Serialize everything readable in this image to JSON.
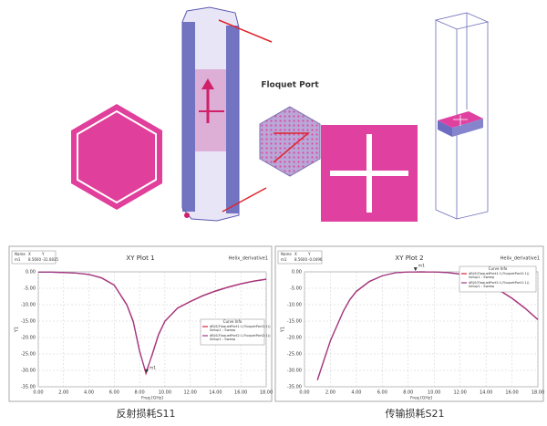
{
  "figure": {
    "port_label": "Floquet Port",
    "captions": [
      "反射损耗S11",
      "传输损耗S21"
    ]
  },
  "chart_data": [
    {
      "type": "line",
      "title": "XY Plot 1",
      "corner_label": "Helix_derivative1",
      "xlabel": "Freq [GHz]",
      "ylabel": "Y1",
      "x": [
        0,
        1,
        2,
        3,
        4,
        5,
        6,
        7,
        7.5,
        8,
        8.5,
        9,
        9.5,
        10,
        11,
        12,
        13,
        14,
        15,
        16,
        17,
        18
      ],
      "series": [
        {
          "name": "dB(S(FloquetPort1:1,FloquetPort1:1))",
          "note": "Setup1 : Sweep",
          "color": "#d6243b",
          "values": [
            -0.1,
            -0.1,
            -0.2,
            -0.4,
            -0.8,
            -1.8,
            -4,
            -10,
            -15,
            -24,
            -31,
            -25,
            -19,
            -15,
            -11,
            -9,
            -7.2,
            -5.8,
            -4.6,
            -3.6,
            -2.8,
            -2.2
          ]
        },
        {
          "name": "dB(S(FloquetPort2:1,FloquetPort2:1))",
          "note": "Setup1 : Sweep",
          "color": "#9b3a8a",
          "values": [
            -0.1,
            -0.1,
            -0.2,
            -0.4,
            -0.8,
            -1.9,
            -4.1,
            -10.2,
            -15.3,
            -24.3,
            -30.6,
            -25.3,
            -19.2,
            -15.1,
            -11.1,
            -9.1,
            -7.3,
            -5.9,
            -4.7,
            -3.7,
            -2.9,
            -2.3
          ]
        }
      ],
      "marker": {
        "label": "m1",
        "x": 8.56,
        "y": -31.0835
      },
      "marker_table": {
        "header": [
          "Name",
          "X",
          "Y"
        ],
        "rows": [
          [
            "m1",
            "8.5600",
            "-31.0835"
          ]
        ]
      },
      "legend_title": "Curve Info",
      "legend": "right",
      "xlim": [
        0,
        18
      ],
      "ylim": [
        -35,
        0
      ],
      "grid": true,
      "xticks": [
        {
          "value": 0,
          "label": "0.00"
        },
        {
          "value": 2,
          "label": "2.00"
        },
        {
          "value": 4,
          "label": "4.00"
        },
        {
          "value": 6,
          "label": "6.00"
        },
        {
          "value": 8,
          "label": "8.00"
        },
        {
          "value": 10,
          "label": "10.00"
        },
        {
          "value": 12,
          "label": "12.00"
        },
        {
          "value": 14,
          "label": "14.00"
        },
        {
          "value": 16,
          "label": "16.00"
        },
        {
          "value": 18,
          "label": "18.00"
        }
      ],
      "yticks": [
        {
          "value": 0,
          "label": "0.00"
        },
        {
          "value": -5,
          "label": "-5.00"
        },
        {
          "value": -10,
          "label": "-10.00"
        },
        {
          "value": -15,
          "label": "-15.00"
        },
        {
          "value": -20,
          "label": "-20.00"
        },
        {
          "value": -25,
          "label": "-25.00"
        },
        {
          "value": -30,
          "label": "-30.00"
        },
        {
          "value": -35,
          "label": "-35.00"
        }
      ]
    },
    {
      "type": "line",
      "title": "XY Plot 2",
      "corner_label": "Helix_derivative1",
      "xlabel": "Freq [GHz]",
      "ylabel": "Y1",
      "x": [
        1,
        1.5,
        2,
        2.5,
        3,
        3.5,
        4,
        5,
        6,
        7,
        8,
        9,
        10,
        11,
        12,
        13,
        14,
        15,
        16,
        17,
        18
      ],
      "series": [
        {
          "name": "dB(S(FloquetPort1:1,FloquetPort2:1))",
          "note": "Setup1 : Sweep",
          "color": "#d6243b",
          "values": [
            -33,
            -27,
            -21,
            -16.5,
            -12,
            -8.5,
            -6,
            -3,
            -1.2,
            -0.3,
            -0.05,
            0,
            -0.05,
            -0.2,
            -0.7,
            -1.7,
            -3.3,
            -5.5,
            -8,
            -11,
            -14.5
          ]
        },
        {
          "name": "dB(S(FloquetPort2:1,FloquetPort1:1))",
          "note": "Setup1 : Sweep",
          "color": "#9b3a8a",
          "values": [
            -32.8,
            -26.8,
            -20.9,
            -16.4,
            -11.9,
            -8.4,
            -5.9,
            -2.9,
            -1.2,
            -0.3,
            -0.05,
            0,
            -0.05,
            -0.2,
            -0.7,
            -1.7,
            -3.3,
            -5.6,
            -8.1,
            -11.1,
            -14.6
          ]
        }
      ],
      "marker": {
        "label": "m1",
        "x": 8.56,
        "y": -0.0496
      },
      "marker_table": {
        "header": [
          "Name",
          "X",
          "Y"
        ],
        "rows": [
          [
            "m1",
            "8.5600",
            "-0.0496"
          ]
        ]
      },
      "legend_title": "Curve Info",
      "legend": "upper right",
      "xlim": [
        0,
        18
      ],
      "ylim": [
        -35,
        0
      ],
      "grid": true,
      "xticks": [
        {
          "value": 0,
          "label": "0.00"
        },
        {
          "value": 2,
          "label": "2.00"
        },
        {
          "value": 4,
          "label": "4.00"
        },
        {
          "value": 6,
          "label": "6.00"
        },
        {
          "value": 8,
          "label": "8.00"
        },
        {
          "value": 10,
          "label": "10.00"
        },
        {
          "value": 12,
          "label": "12.00"
        },
        {
          "value": 14,
          "label": "14.00"
        },
        {
          "value": 16,
          "label": "16.00"
        },
        {
          "value": 18,
          "label": "18.00"
        }
      ],
      "yticks": [
        {
          "value": 0,
          "label": "0.00"
        },
        {
          "value": -5,
          "label": "-5.00"
        },
        {
          "value": -10,
          "label": "-10.00"
        },
        {
          "value": -15,
          "label": "-15.00"
        },
        {
          "value": -20,
          "label": "-20.00"
        },
        {
          "value": -25,
          "label": "-25.00"
        },
        {
          "value": -30,
          "label": "-30.00"
        },
        {
          "value": -35,
          "label": "-35.00"
        }
      ]
    }
  ]
}
